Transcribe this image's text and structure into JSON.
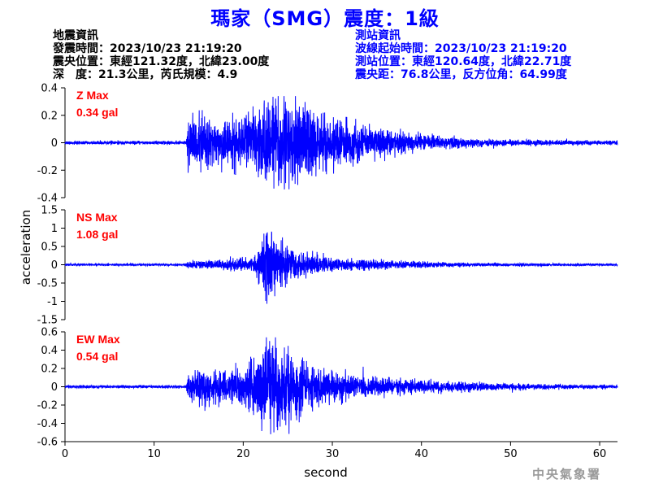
{
  "header": {
    "title": "瑪家（SMG）震度：1級",
    "quake_info": [
      "地震資訊",
      "發震時間：2023/10/23 21:19:20",
      "震央位置：東經121.32度，北緯23.00度",
      "深　度：21.3公里，芮氏規模：4.9"
    ],
    "station_info": [
      "測站資訊",
      "波線起始時間：2023/10/23 21:19:20",
      "測站位置：東經120.64度，北緯22.71度",
      "震央距：76.8公里，反方位角：64.99度"
    ]
  },
  "footer": {
    "agency": "中央氣象署"
  },
  "colors": {
    "trace": "#0000ff",
    "max_label": "#ff0000",
    "title": "#0000ff"
  },
  "chart_data": {
    "type": "line",
    "xlabel": "second",
    "ylabel": "acceleration",
    "xlim": [
      0,
      62
    ],
    "xticks": [
      0,
      10,
      20,
      30,
      40,
      50,
      60
    ],
    "components": [
      {
        "name": "Z",
        "max_label": "Z Max",
        "max_value": "0.34 gal",
        "peak": 0.34,
        "ylim": [
          -0.4,
          0.4
        ],
        "yticks": [
          -0.4,
          -0.2,
          0,
          0.2,
          0.4
        ],
        "envelope": [
          [
            0,
            0.012
          ],
          [
            13.6,
            0.012
          ],
          [
            13.8,
            0.16
          ],
          [
            15,
            0.19
          ],
          [
            17,
            0.15
          ],
          [
            20,
            0.19
          ],
          [
            22,
            0.26
          ],
          [
            23,
            0.3
          ],
          [
            24,
            0.34
          ],
          [
            25,
            0.3
          ],
          [
            27,
            0.24
          ],
          [
            29,
            0.19
          ],
          [
            31,
            0.16
          ],
          [
            33,
            0.13
          ],
          [
            35,
            0.11
          ],
          [
            37,
            0.09
          ],
          [
            40,
            0.06
          ],
          [
            43,
            0.04
          ],
          [
            46,
            0.03
          ],
          [
            50,
            0.022
          ],
          [
            55,
            0.018
          ],
          [
            62,
            0.015
          ]
        ]
      },
      {
        "name": "NS",
        "max_label": "NS Max",
        "max_value": "1.08 gal",
        "peak": 1.08,
        "ylim": [
          -1.5,
          1.5
        ],
        "yticks": [
          -1.5,
          -1,
          -0.5,
          0,
          0.5,
          1,
          1.5
        ],
        "envelope": [
          [
            0,
            0.03
          ],
          [
            13.6,
            0.03
          ],
          [
            13.8,
            0.1
          ],
          [
            16,
            0.12
          ],
          [
            19,
            0.15
          ],
          [
            21,
            0.2
          ],
          [
            22,
            0.5
          ],
          [
            22.4,
            1.08
          ],
          [
            23.2,
            0.85
          ],
          [
            24.5,
            0.5
          ],
          [
            26,
            0.35
          ],
          [
            28,
            0.25
          ],
          [
            31,
            0.17
          ],
          [
            35,
            0.12
          ],
          [
            40,
            0.08
          ],
          [
            45,
            0.05
          ],
          [
            50,
            0.04
          ],
          [
            55,
            0.035
          ],
          [
            62,
            0.03
          ]
        ]
      },
      {
        "name": "EW",
        "max_label": "EW Max",
        "max_value": "0.54 gal",
        "peak": 0.54,
        "ylim": [
          -0.6,
          0.6
        ],
        "yticks": [
          -0.6,
          -0.4,
          -0.2,
          0,
          0.2,
          0.4,
          0.6
        ],
        "envelope": [
          [
            0,
            0.015
          ],
          [
            13.6,
            0.015
          ],
          [
            13.8,
            0.12
          ],
          [
            15,
            0.2
          ],
          [
            17,
            0.18
          ],
          [
            20,
            0.2
          ],
          [
            22,
            0.4
          ],
          [
            22.8,
            0.54
          ],
          [
            23.5,
            0.45
          ],
          [
            25,
            0.38
          ],
          [
            27,
            0.26
          ],
          [
            29,
            0.18
          ],
          [
            32,
            0.13
          ],
          [
            35,
            0.1
          ],
          [
            40,
            0.07
          ],
          [
            45,
            0.05
          ],
          [
            50,
            0.035
          ],
          [
            55,
            0.025
          ],
          [
            62,
            0.02
          ]
        ]
      }
    ]
  }
}
